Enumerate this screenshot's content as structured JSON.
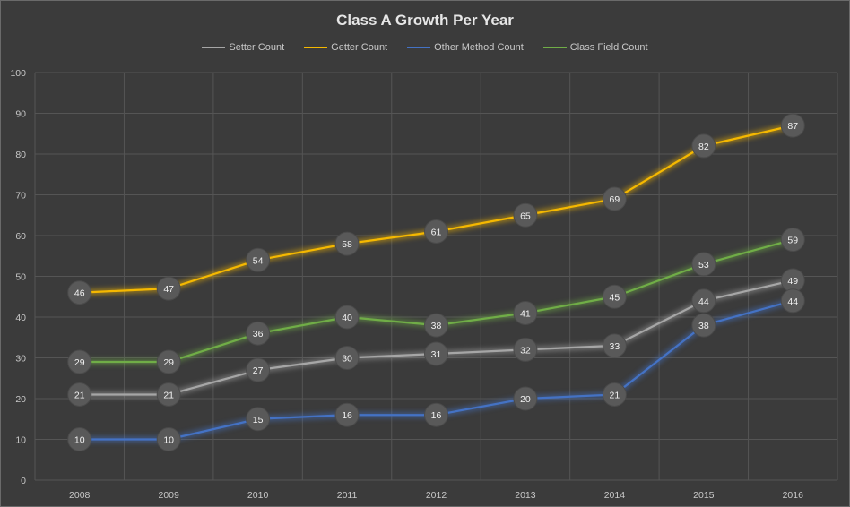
{
  "chart_data": {
    "type": "line",
    "title": "Class A Growth Per Year",
    "x": [
      "2008",
      "2009",
      "2010",
      "2011",
      "2012",
      "2013",
      "2014",
      "2015",
      "2016"
    ],
    "ylim": [
      0,
      100
    ],
    "yticks": [
      0,
      10,
      20,
      30,
      40,
      50,
      60,
      70,
      80,
      90,
      100
    ],
    "grid": true,
    "legend_position": "top",
    "series": [
      {
        "name": "Setter Count",
        "color": "#a6a6a6",
        "values": [
          21,
          21,
          27,
          30,
          31,
          32,
          33,
          44,
          49
        ]
      },
      {
        "name": "Getter Count",
        "color": "#f5b800",
        "values": [
          46,
          47,
          54,
          58,
          61,
          65,
          69,
          82,
          87
        ]
      },
      {
        "name": "Other Method Count",
        "color": "#4472c4",
        "values": [
          10,
          10,
          15,
          16,
          16,
          20,
          21,
          38,
          44
        ]
      },
      {
        "name": "Class Field Count",
        "color": "#70ad47",
        "values": [
          29,
          29,
          36,
          40,
          38,
          41,
          45,
          53,
          59
        ]
      }
    ]
  }
}
